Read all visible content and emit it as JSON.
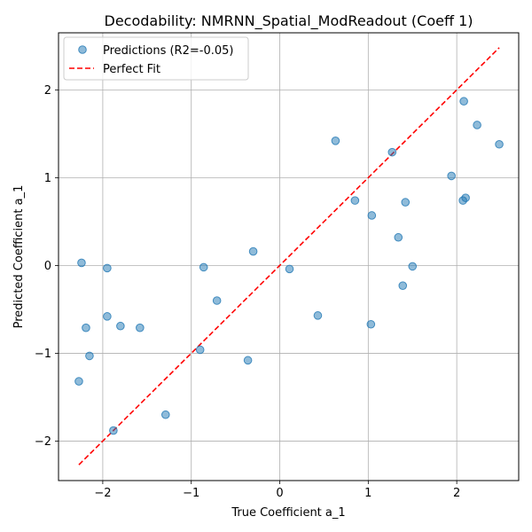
{
  "chart_data": {
    "type": "scatter",
    "title": "Decodability: NMRNN_Spatial_ModReadout (Coeff 1)",
    "xlabel": "True Coefficient a_1",
    "ylabel": "Predicted Coefficient a_1",
    "xlim": [
      -2.5,
      2.7
    ],
    "ylim": [
      -2.45,
      2.65
    ],
    "xticks": [
      -2,
      -1,
      0,
      1,
      2
    ],
    "yticks": [
      -2,
      -1,
      0,
      1,
      2
    ],
    "grid": true,
    "legend_placement": "top-left",
    "series": [
      {
        "name": "Predictions (R2=-0.05)",
        "kind": "scatter",
        "color": "#1f77b4",
        "x": [
          -2.24,
          -2.27,
          -2.19,
          -2.15,
          -1.95,
          -1.95,
          -1.8,
          -1.88,
          -1.58,
          -1.29,
          -0.86,
          -0.9,
          -0.71,
          -0.36,
          -0.3,
          0.11,
          0.43,
          0.63,
          0.85,
          1.03,
          1.04,
          1.27,
          1.34,
          1.39,
          1.42,
          1.5,
          1.94,
          2.07,
          2.1,
          2.08,
          2.23,
          2.48
        ],
        "y": [
          0.03,
          -1.32,
          -0.71,
          -1.03,
          -0.03,
          -0.58,
          -0.69,
          -1.88,
          -0.71,
          -1.7,
          -0.02,
          -0.96,
          -0.4,
          -1.08,
          0.16,
          -0.04,
          -0.57,
          1.42,
          0.74,
          -0.67,
          0.57,
          1.29,
          0.32,
          -0.23,
          0.72,
          -0.01,
          1.02,
          0.74,
          0.77,
          1.87,
          1.6,
          1.38
        ]
      },
      {
        "name": "Perfect Fit",
        "kind": "line",
        "color": "#ff0000",
        "x": [
          -2.27,
          2.48
        ],
        "y": [
          -2.27,
          2.48
        ]
      }
    ]
  }
}
